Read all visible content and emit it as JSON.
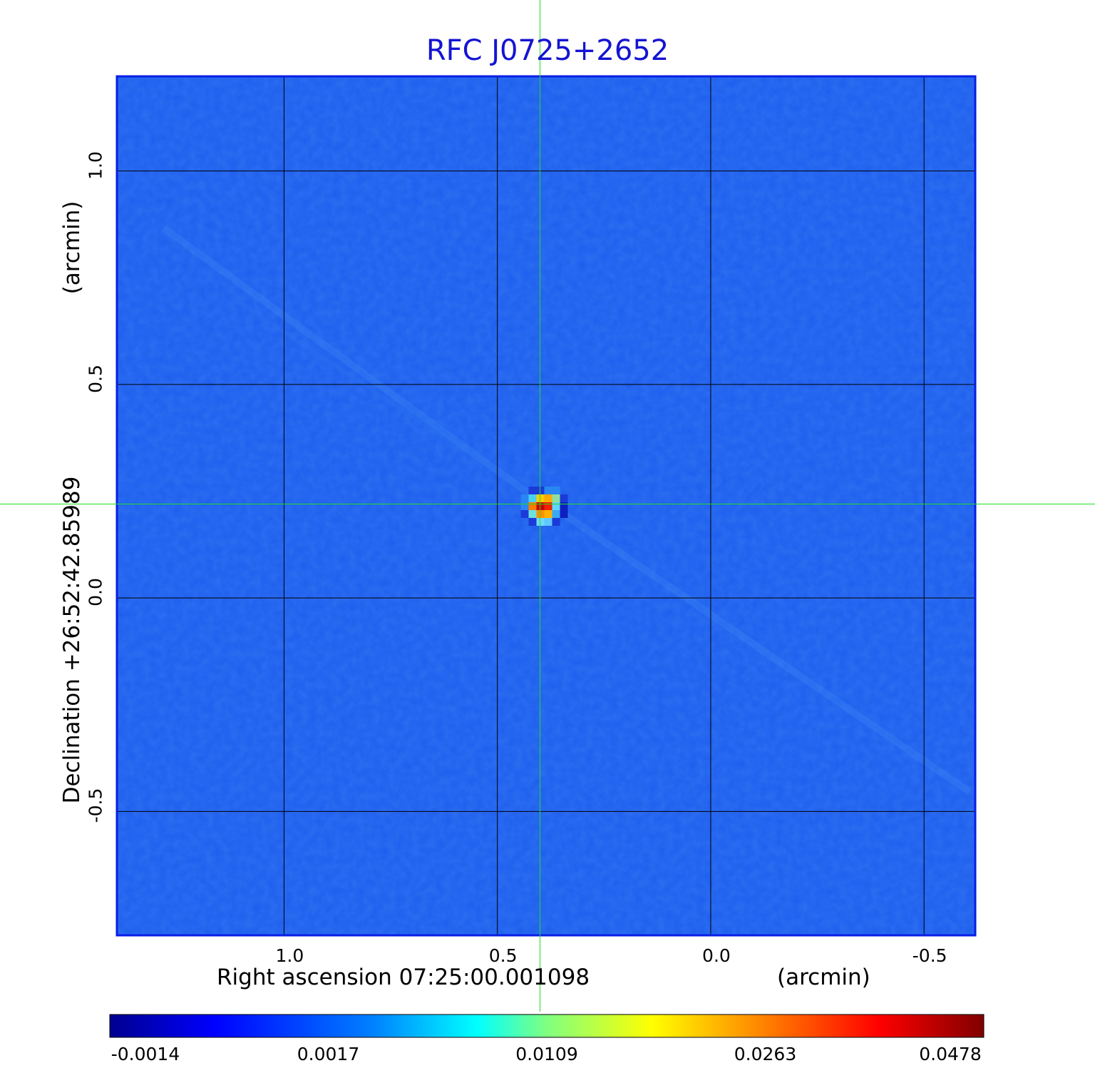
{
  "chart_data": {
    "type": "heatmap",
    "title": "RFC J0725+2652",
    "xlabel": "Right ascension  07:25:00.001098",
    "xlabel_unit": "(arcmin)",
    "ylabel": "Declination  +26:52:42.85989",
    "ylabel_unit": "(arcmin)",
    "xlim": [
      1.39,
      -0.62
    ],
    "ylim": [
      -0.79,
      1.22
    ],
    "x_ticks": [
      {
        "value": 1.0,
        "label": "1.0"
      },
      {
        "value": 0.5,
        "label": "0.5"
      },
      {
        "value": 0.0,
        "label": "0.0"
      },
      {
        "value": -0.5,
        "label": "-0.5"
      }
    ],
    "y_ticks": [
      {
        "value": 1.0,
        "label": "1.0"
      },
      {
        "value": 0.5,
        "label": "0.5"
      },
      {
        "value": 0.0,
        "label": "0.0"
      },
      {
        "value": -0.5,
        "label": "-0.5"
      }
    ],
    "grid": true,
    "crosshair": {
      "x": 0.4,
      "y": 0.22
    },
    "source_peak": {
      "x": 0.39,
      "y": 0.215,
      "value": 0.0478
    },
    "colorbar": {
      "labels": [
        "-0.0014",
        "0.0017",
        "0.0109",
        "0.0263",
        "0.0478"
      ],
      "colormap": [
        "#00008f",
        "#0000ff",
        "#0080ff",
        "#00ffff",
        "#80ff80",
        "#ffff00",
        "#ff8000",
        "#ff0000",
        "#800000"
      ]
    },
    "colors": {
      "background": "#1f5fee",
      "frame": "#0a1ee6",
      "grid": "#000000",
      "crosshair": "#22dd22",
      "title": "#1414d2"
    }
  }
}
